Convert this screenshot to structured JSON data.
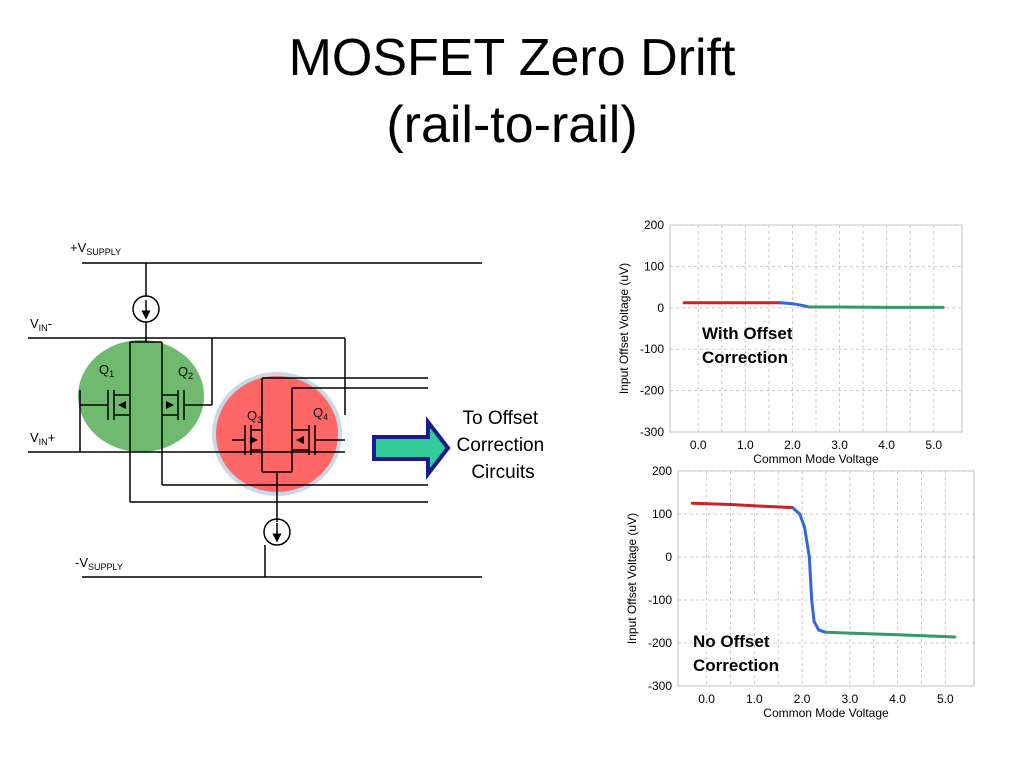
{
  "slide": {
    "title_line1": "MOSFET Zero Drift",
    "title_line2": "(rail-to-rail)"
  },
  "circuit": {
    "supply_pos_label": "+V",
    "supply_pos_sub": "SUPPLY",
    "supply_neg_label": "-V",
    "supply_neg_sub": "SUPPLY",
    "vin_neg_label": "V",
    "vin_neg_sub": "IN",
    "vin_neg_sign": "-",
    "vin_pos_label": "V",
    "vin_pos_sub": "IN",
    "vin_pos_sign": "+",
    "q1": "Q",
    "q1_sub": "1",
    "q2": "Q",
    "q2_sub": "2",
    "q3": "Q",
    "q3_sub": "3",
    "q4": "Q",
    "q4_sub": "4",
    "pmos_pair_color": "#6fba6f",
    "nmos_pair_color": "#ff6666",
    "arrow_fill": "#33cc99",
    "arrow_stroke": "#1a1a8c",
    "output_text": [
      "To Offset",
      "Correction",
      "Circuits"
    ]
  },
  "chart_data": [
    {
      "type": "line",
      "annotation": [
        "With Offset",
        "Correction"
      ],
      "xlabel": "Common Mode Voltage",
      "ylabel": "Input Offset Voltage (uV)",
      "xlim": [
        -0.6,
        5.6
      ],
      "ylim": [
        -300,
        200
      ],
      "xticks": [
        "0.0",
        "1.0",
        "2.0",
        "3.0",
        "4.0",
        "5.0"
      ],
      "yticks": [
        "200",
        "100",
        "0",
        "-100",
        "-200",
        "-300"
      ],
      "series": [
        {
          "color": "#cc2222",
          "x": [
            -0.3,
            0.5,
            1.2,
            1.75
          ],
          "y": [
            12,
            12,
            12,
            12
          ]
        },
        {
          "color": "#3366dd",
          "x": [
            1.75,
            2.0,
            2.2,
            2.35
          ],
          "y": [
            12,
            10,
            6,
            2
          ]
        },
        {
          "color": "#339966",
          "x": [
            2.35,
            3.0,
            4.0,
            5.2
          ],
          "y": [
            2,
            2,
            1,
            1
          ]
        }
      ]
    },
    {
      "type": "line",
      "annotation": [
        "No Offset",
        "Correction"
      ],
      "xlabel": "Common Mode Voltage",
      "ylabel": "Input Offset Voltage (uV)",
      "xlim": [
        -0.6,
        5.6
      ],
      "ylim": [
        -300,
        200
      ],
      "xticks": [
        "0.0",
        "1.0",
        "2.0",
        "3.0",
        "4.0",
        "5.0"
      ],
      "yticks": [
        "200",
        "100",
        "0",
        "-100",
        "-200",
        "-300"
      ],
      "series": [
        {
          "color": "#cc2222",
          "x": [
            -0.3,
            0.5,
            1.2,
            1.8
          ],
          "y": [
            125,
            122,
            118,
            115
          ]
        },
        {
          "color": "#3366dd",
          "x": [
            1.8,
            1.95,
            2.05,
            2.15,
            2.2,
            2.25,
            2.35,
            2.5
          ],
          "y": [
            115,
            100,
            70,
            0,
            -100,
            -150,
            -170,
            -175
          ]
        },
        {
          "color": "#339966",
          "x": [
            2.5,
            3.0,
            4.0,
            5.0,
            5.2
          ],
          "y": [
            -175,
            -177,
            -181,
            -185,
            -186
          ]
        }
      ]
    }
  ]
}
